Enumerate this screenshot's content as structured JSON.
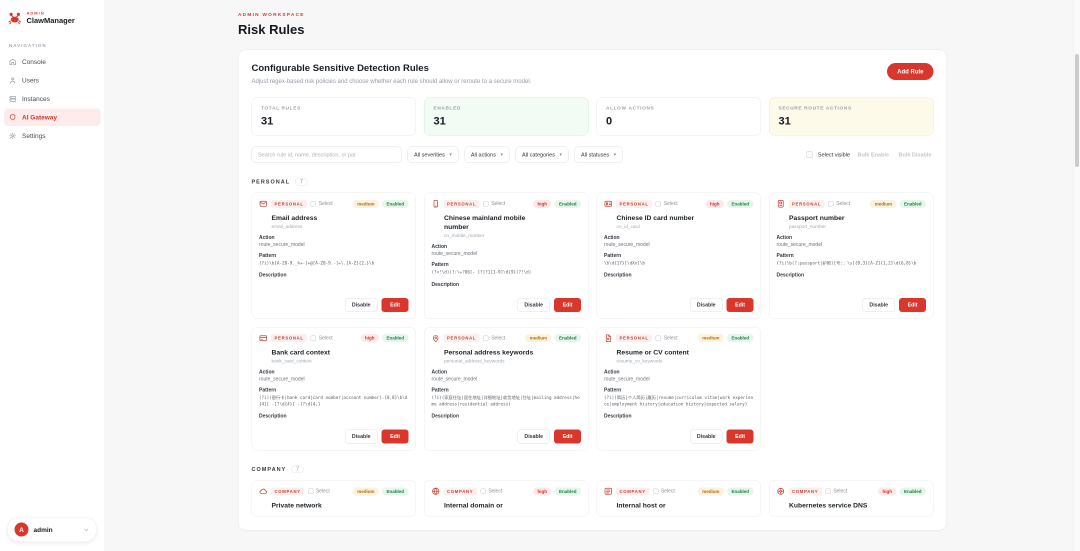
{
  "accent_color": "#d9372c",
  "sidebar": {
    "brand": {
      "eyebrow": "ADMIN",
      "name": "ClawManager",
      "logo_icon": "crab-icon"
    },
    "nav_heading": "NAVIGATION",
    "items": [
      {
        "label": "Console",
        "icon": "console-icon",
        "active": false
      },
      {
        "label": "Users",
        "icon": "users-icon",
        "active": false
      },
      {
        "label": "Instances",
        "icon": "instances-icon",
        "active": false
      },
      {
        "label": "AI Gateway",
        "icon": "gateway-icon",
        "active": true
      },
      {
        "label": "Settings",
        "icon": "settings-icon",
        "active": false
      }
    ],
    "user": {
      "initial": "A",
      "name": "admin",
      "chevron_icon": "chevron-down-icon"
    }
  },
  "header": {
    "workspace": "ADMIN WORKSPACE",
    "title": "Risk Rules"
  },
  "panel": {
    "title": "Configurable Sensitive Detection Rules",
    "subtitle": "Adjust regex-based risk policies and choose whether each rule should allow or reroute to a secure model.",
    "add_rule": "Add Rule",
    "stats": [
      {
        "label": "TOTAL RULES",
        "value": "31",
        "variant": "plain"
      },
      {
        "label": "ENABLED",
        "value": "31",
        "variant": "green"
      },
      {
        "label": "ALLOW ACTIONS",
        "value": "0",
        "variant": "plain"
      },
      {
        "label": "SECURE ROUTE ACTIONS",
        "value": "31",
        "variant": "yellow"
      }
    ],
    "filters": {
      "search_placeholder": "Search rule id, name, description, or pat",
      "selects": [
        "All severities",
        "All actions",
        "All categories",
        "All statuses"
      ],
      "select_visible": "Select visible",
      "bulk_enable": "Bulk Enable",
      "bulk_disable": "Bulk Disable"
    }
  },
  "labels": {
    "select": "Select",
    "action": "Action",
    "pattern": "Pattern",
    "description": "Description",
    "disable": "Disable",
    "edit": "Edit"
  },
  "sections": [
    {
      "name": "PERSONAL",
      "count": "7",
      "rules": [
        {
          "icon": "mail-icon",
          "category": "PERSONAL",
          "severity": "medium",
          "status": "Enabled",
          "name": "Email address",
          "id": "email_address",
          "action": "route_secure_model",
          "pattern": "(?i)\\b[A-Z0-9._%+-]+@[A-Z0-9.-]+\\.[A-Z]{2,}\\b",
          "description": ""
        },
        {
          "icon": "phone-icon",
          "category": "PERSONAL",
          "severity": "high",
          "status": "Enabled",
          "name": "Chinese mainland mobile number",
          "id": "cn_mobile_number",
          "action": "route_secure_model",
          "pattern": "(?<!\\d)(?:\\+?86[- ]?)?1[3-9]\\d{9}(?!\\d)",
          "description": ""
        },
        {
          "icon": "id-card-icon",
          "category": "PERSONAL",
          "severity": "high",
          "status": "Enabled",
          "name": "Chinese ID card number",
          "id": "cn_id_card",
          "action": "route_secure_model",
          "pattern": "\\b\\d{17}[\\dXx]\\b",
          "description": ""
        },
        {
          "icon": "passport-icon",
          "category": "PERSONAL",
          "severity": "medium",
          "status": "Enabled",
          "name": "Passport number",
          "id": "passport_number",
          "action": "route_secure_model",
          "pattern": "(?i)\\b(?:passport|护照)[号:：\\s]{0,3}[A-Z]{1,2}\\d{6,8}\\b",
          "description": ""
        },
        {
          "icon": "credit-card-icon",
          "category": "PERSONAL",
          "severity": "high",
          "status": "Enabled",
          "name": "Bank card context",
          "id": "bank_card_context",
          "action": "route_secure_model",
          "pattern": "(?i)(银行卡|bank card|card number|account number).{0,8}\\b\\d{4}[ -]?\\d{4}[ -]?\\d{4,}",
          "description": ""
        },
        {
          "icon": "location-icon",
          "category": "PERSONAL",
          "severity": "medium",
          "status": "Enabled",
          "name": "Personal address keywords",
          "id": "personal_address_keywords",
          "action": "route_secure_model",
          "pattern": "(?i)(家庭住址|居住地址|详细地址|收货地址|住址|mailing address|home address|residential address)",
          "description": ""
        },
        {
          "icon": "document-icon",
          "category": "PERSONAL",
          "severity": "medium",
          "status": "Enabled",
          "name": "Resume or CV content",
          "id": "resume_cv_keywords",
          "action": "route_secure_model",
          "pattern": "(?i)(简历|个人简历|履历|resume|curriculum vitae|work experience|employment history|education history|expected salary)",
          "description": ""
        }
      ]
    },
    {
      "name": "COMPANY",
      "count": "7",
      "rules": [
        {
          "icon": "cloud-icon",
          "category": "COMPANY",
          "severity": "medium",
          "status": "Enabled",
          "name": "Private network",
          "partial": true
        },
        {
          "icon": "globe-icon",
          "category": "COMPANY",
          "severity": "high",
          "status": "Enabled",
          "name": "Internal domain or",
          "partial": true
        },
        {
          "icon": "host-icon",
          "category": "COMPANY",
          "severity": "medium",
          "status": "Enabled",
          "name": "Internal host or",
          "partial": true
        },
        {
          "icon": "kubernetes-icon",
          "category": "COMPANY",
          "severity": "high",
          "status": "Enabled",
          "name": "Kubernetes service DNS",
          "partial": true
        }
      ]
    }
  ]
}
